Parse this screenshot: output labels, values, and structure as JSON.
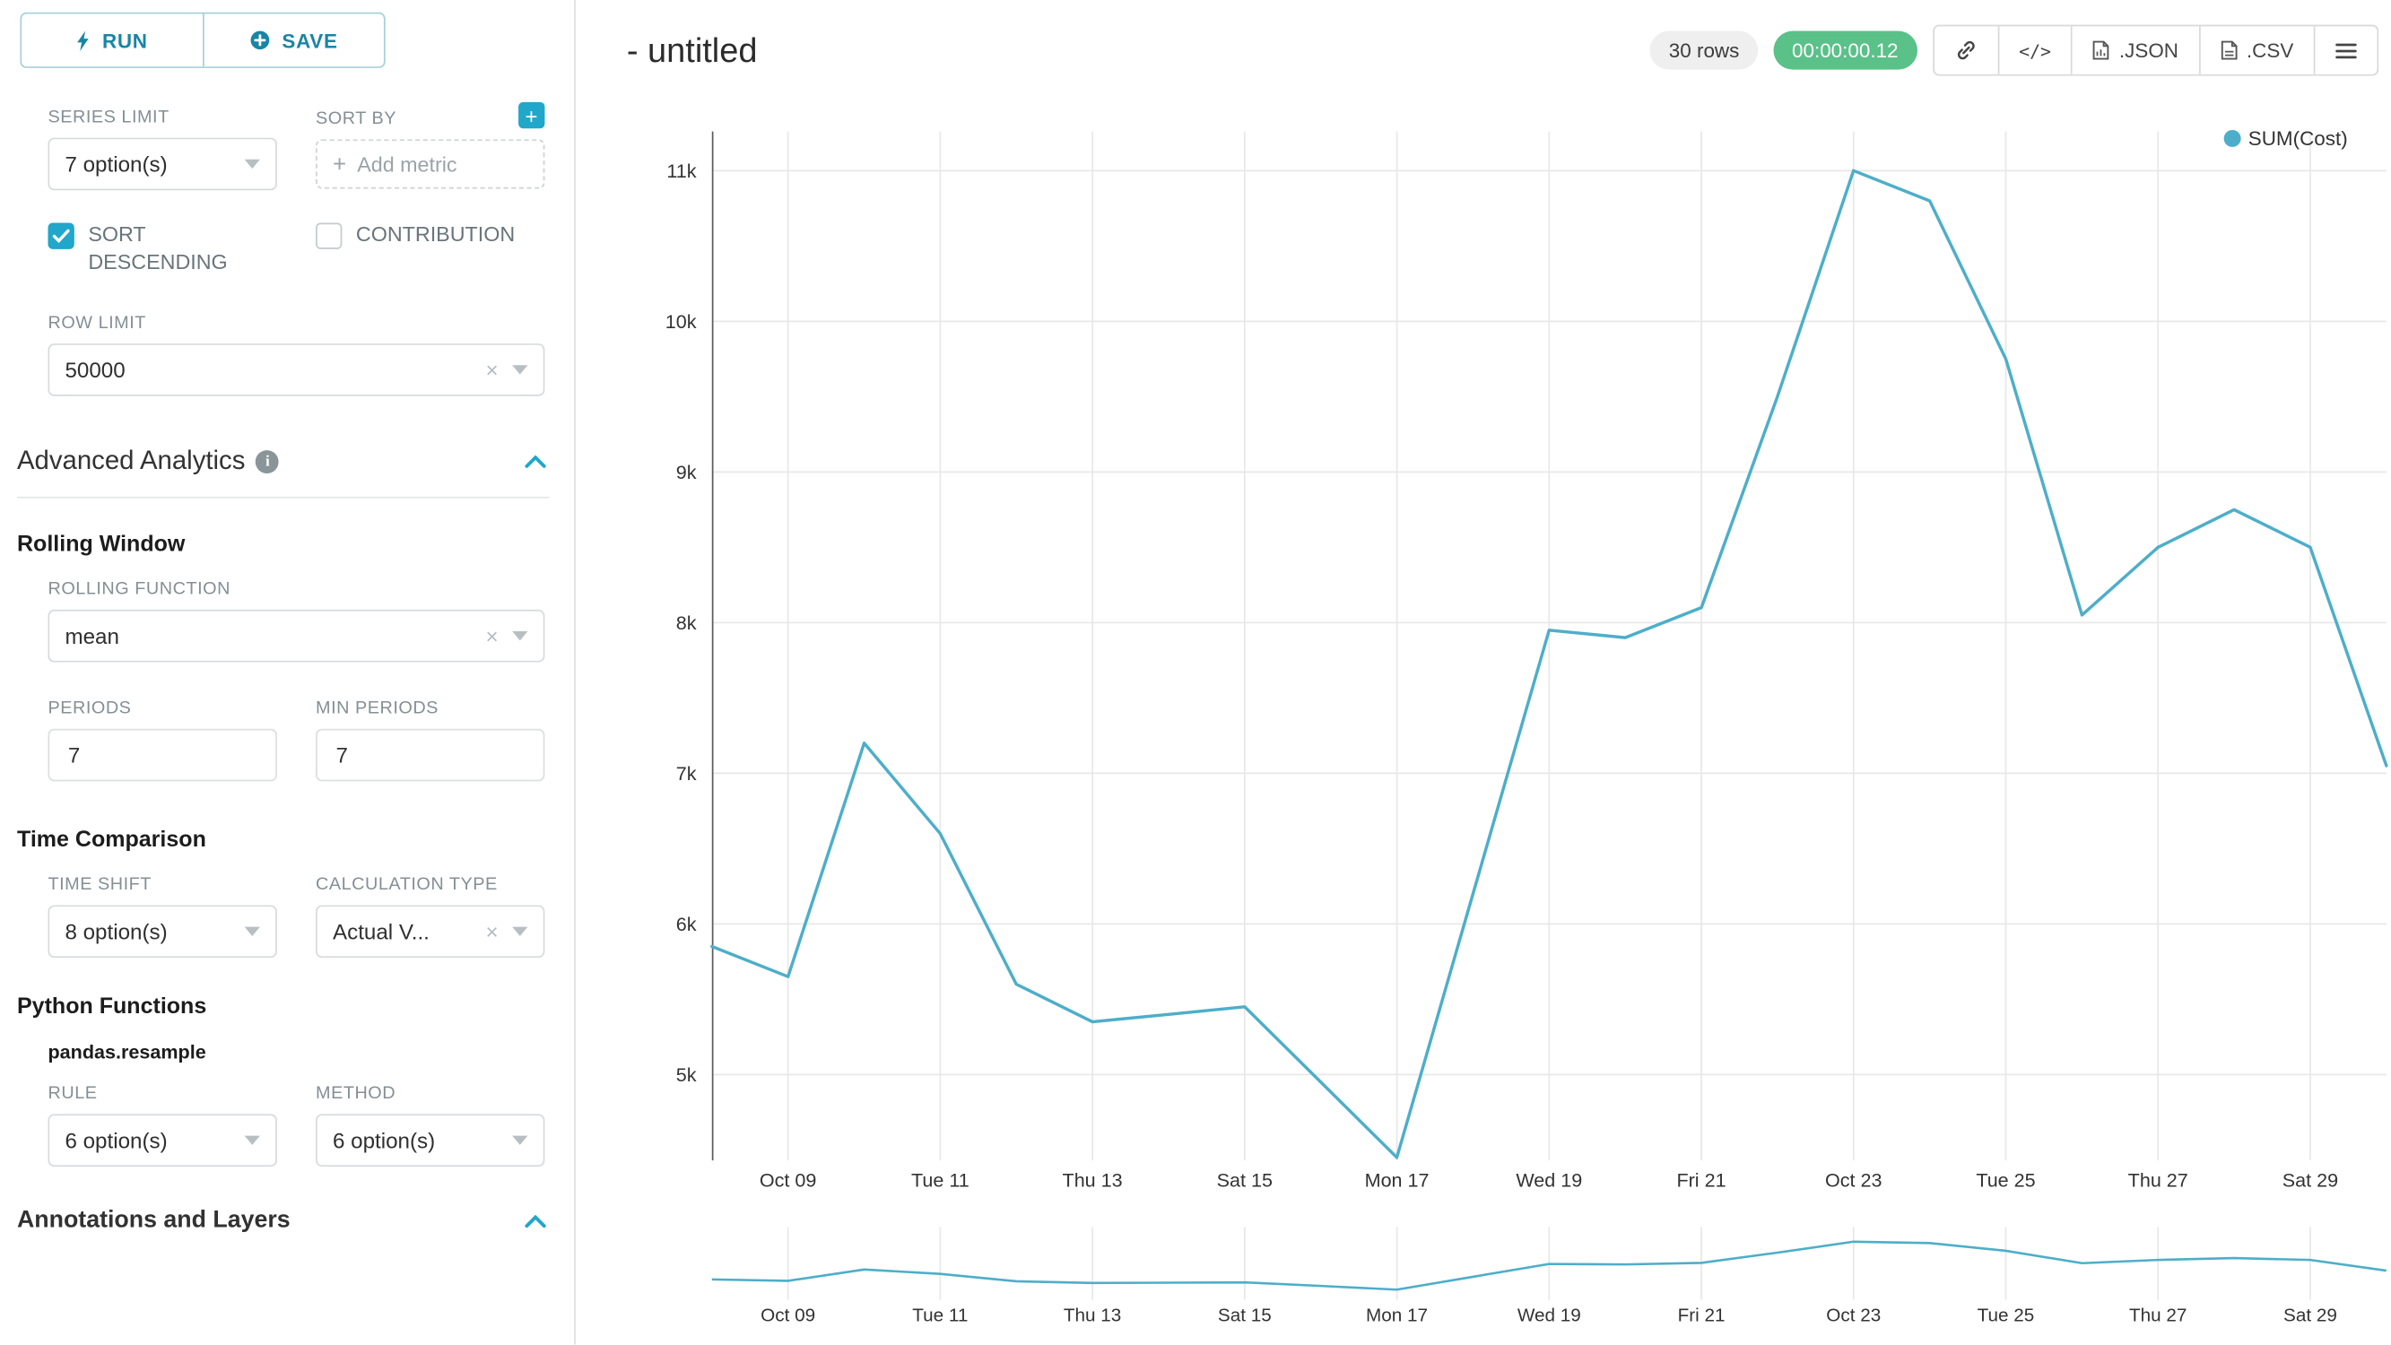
{
  "colors": {
    "accent": "#20a7c9",
    "run_save_text": "#1985a5",
    "timer_green": "#5ac189",
    "line": "#4daec9",
    "grid": "#e8e8e8",
    "axis_line": "#5c5c5c",
    "axis_text": "#333333"
  },
  "sidebar": {
    "run_button": "RUN",
    "save_button": "SAVE",
    "series_limit_label": "SERIES LIMIT",
    "series_limit_value": "7 option(s)",
    "sort_by_label": "SORT BY",
    "add_metric_placeholder": "Add metric",
    "sort_descending_label": "SORT DESCENDING",
    "contribution_label": "CONTRIBUTION",
    "row_limit_label": "ROW LIMIT",
    "row_limit_value": "50000",
    "advanced_analytics_title": "Advanced Analytics",
    "rolling_window_title": "Rolling Window",
    "rolling_function_label": "ROLLING FUNCTION",
    "rolling_function_value": "mean",
    "periods_label": "PERIODS",
    "periods_value": "7",
    "min_periods_label": "MIN PERIODS",
    "min_periods_value": "7",
    "time_comparison_title": "Time Comparison",
    "time_shift_label": "TIME SHIFT",
    "time_shift_value": "8 option(s)",
    "calculation_type_label": "CALCULATION TYPE",
    "calculation_type_value": "Actual V...",
    "python_functions_title": "Python Functions",
    "pandas_resample_label": "pandas.resample",
    "rule_label": "RULE",
    "rule_value": "6 option(s)",
    "method_label": "METHOD",
    "method_value": "6 option(s)",
    "annotations_title": "Annotations and Layers"
  },
  "header": {
    "title": "- untitled",
    "rows_badge": "30 rows",
    "timer_badge": "00:00:00.12",
    "json_button": ".JSON",
    "csv_button": ".CSV"
  },
  "chart_data": {
    "type": "line",
    "title": "",
    "legend": [
      "SUM(Cost)"
    ],
    "legend_position": "top-right",
    "color": "#4daec9",
    "grid": true,
    "x": [
      "Oct 08",
      "Oct 09",
      "Oct 10",
      "Oct 11",
      "Oct 12",
      "Oct 13",
      "Oct 14",
      "Oct 15",
      "Oct 16",
      "Oct 17",
      "Oct 18",
      "Oct 19",
      "Oct 20",
      "Oct 21",
      "Oct 22",
      "Oct 23",
      "Oct 24",
      "Oct 25",
      "Oct 26",
      "Oct 27",
      "Oct 28",
      "Oct 29",
      "Oct 30"
    ],
    "series": [
      {
        "name": "SUM(Cost)",
        "values": [
          5850,
          5650,
          7200,
          6600,
          5600,
          5350,
          5400,
          5450,
          4950,
          4450,
          6200,
          7950,
          7900,
          8100,
          9500,
          11000,
          10800,
          9750,
          8050,
          8500,
          8750,
          8500,
          7050
        ]
      }
    ],
    "x_tick_indices": [
      1,
      3,
      5,
      7,
      9,
      11,
      13,
      15,
      17,
      19,
      21
    ],
    "x_tick_labels": [
      "Oct 09",
      "Tue 11",
      "Thu 13",
      "Sat 15",
      "Mon 17",
      "Wed 19",
      "Fri 21",
      "Oct 23",
      "Tue 25",
      "Thu 27",
      "Sat 29"
    ],
    "y_tick_labels": [
      "5k",
      "6k",
      "7k",
      "8k",
      "9k",
      "10k",
      "11k"
    ],
    "y_tick_values": [
      5000,
      6000,
      7000,
      8000,
      9000,
      10000,
      11000
    ],
    "ylim": [
      4430,
      11260
    ],
    "mini_chart": true
  }
}
